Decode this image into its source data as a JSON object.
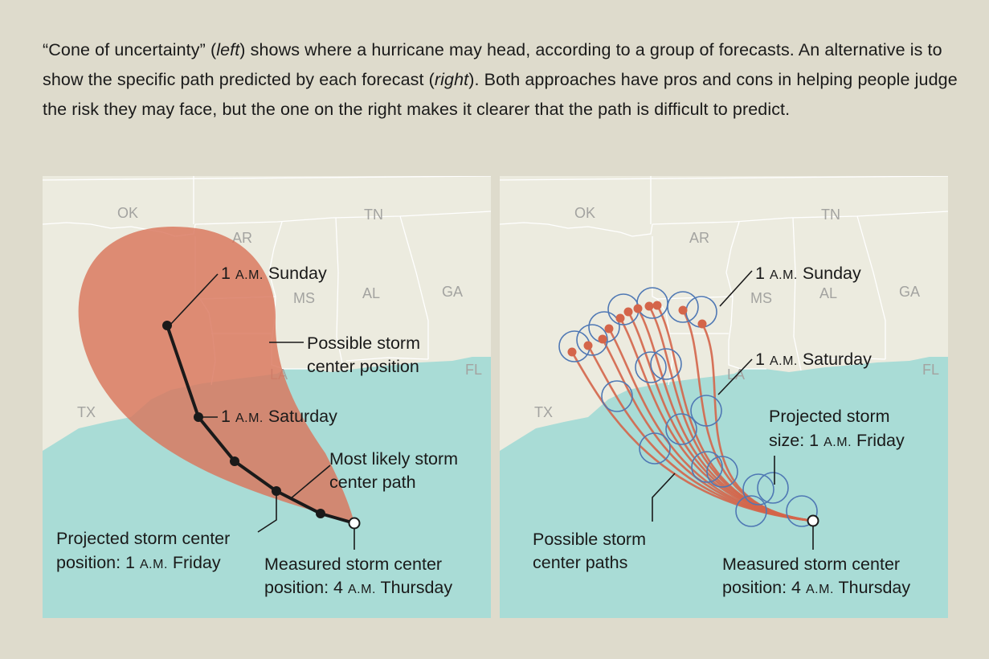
{
  "caption": {
    "part1": "“Cone of uncertainty” (",
    "left_word": "left",
    "part2": ") shows where a hurricane may head, according to a group of forecasts. An alternative is to show the specific path predicted by each forecast (",
    "right_word": "right",
    "part3": "). Both approaches have pros and cons in helping people judge the risk they may face, but the one on the right makes it clearer that the path is difficult to predict."
  },
  "states": {
    "left": {
      "OK": "OK",
      "AR": "AR",
      "TN": "TN",
      "MS": "MS",
      "AL": "AL",
      "GA": "GA",
      "LA": "LA",
      "FL": "FL",
      "TX": "TX"
    },
    "right": {
      "OK": "OK",
      "AR": "AR",
      "TN": "TN",
      "MS": "MS",
      "AL": "AL",
      "GA": "GA",
      "LA": "LA",
      "FL": "FL",
      "TX": "TX"
    }
  },
  "left_panel": {
    "sunday": {
      "time": "1",
      "smallcaps": "A.M.",
      "day": "Sunday"
    },
    "saturday": {
      "time": "1",
      "smallcaps": "A.M.",
      "day": "Saturday"
    },
    "possible_position": {
      "line1": "Possible storm",
      "line2": "center position"
    },
    "likely_path": {
      "line1": "Most likely storm",
      "line2": "center path"
    },
    "projected": {
      "line1": "Projected storm center",
      "line2_prefix": "position: 1",
      "smallcaps": "A.M.",
      "line2_suffix": "Friday"
    },
    "measured": {
      "line1": "Measured storm center",
      "line2_prefix": "position: 4",
      "smallcaps": "A.M.",
      "line2_suffix": "Thursday"
    }
  },
  "right_panel": {
    "sunday": {
      "time": "1",
      "smallcaps": "A.M.",
      "day": "Sunday"
    },
    "saturday": {
      "time": "1",
      "smallcaps": "A.M.",
      "day": "Saturday"
    },
    "storm_size": {
      "line1": "Projected storm",
      "line2_prefix": "size: 1",
      "smallcaps": "A.M.",
      "line2_suffix": "Friday"
    },
    "possible_paths": {
      "line1": "Possible storm",
      "line2": "center paths"
    },
    "measured": {
      "line1": "Measured storm center",
      "line2_prefix": "position: 4",
      "smallcaps": "A.M.",
      "line2_suffix": "Thursday"
    }
  },
  "colors": {
    "land": "#ecebdf",
    "water": "#a9dcd6",
    "borders": "#ffffff",
    "cone": "#d9755b",
    "track_line": "#1a1a1a",
    "forecast_path": "#d4654a",
    "storm_circle": "#4f78b4",
    "background": "#dedbcc"
  }
}
